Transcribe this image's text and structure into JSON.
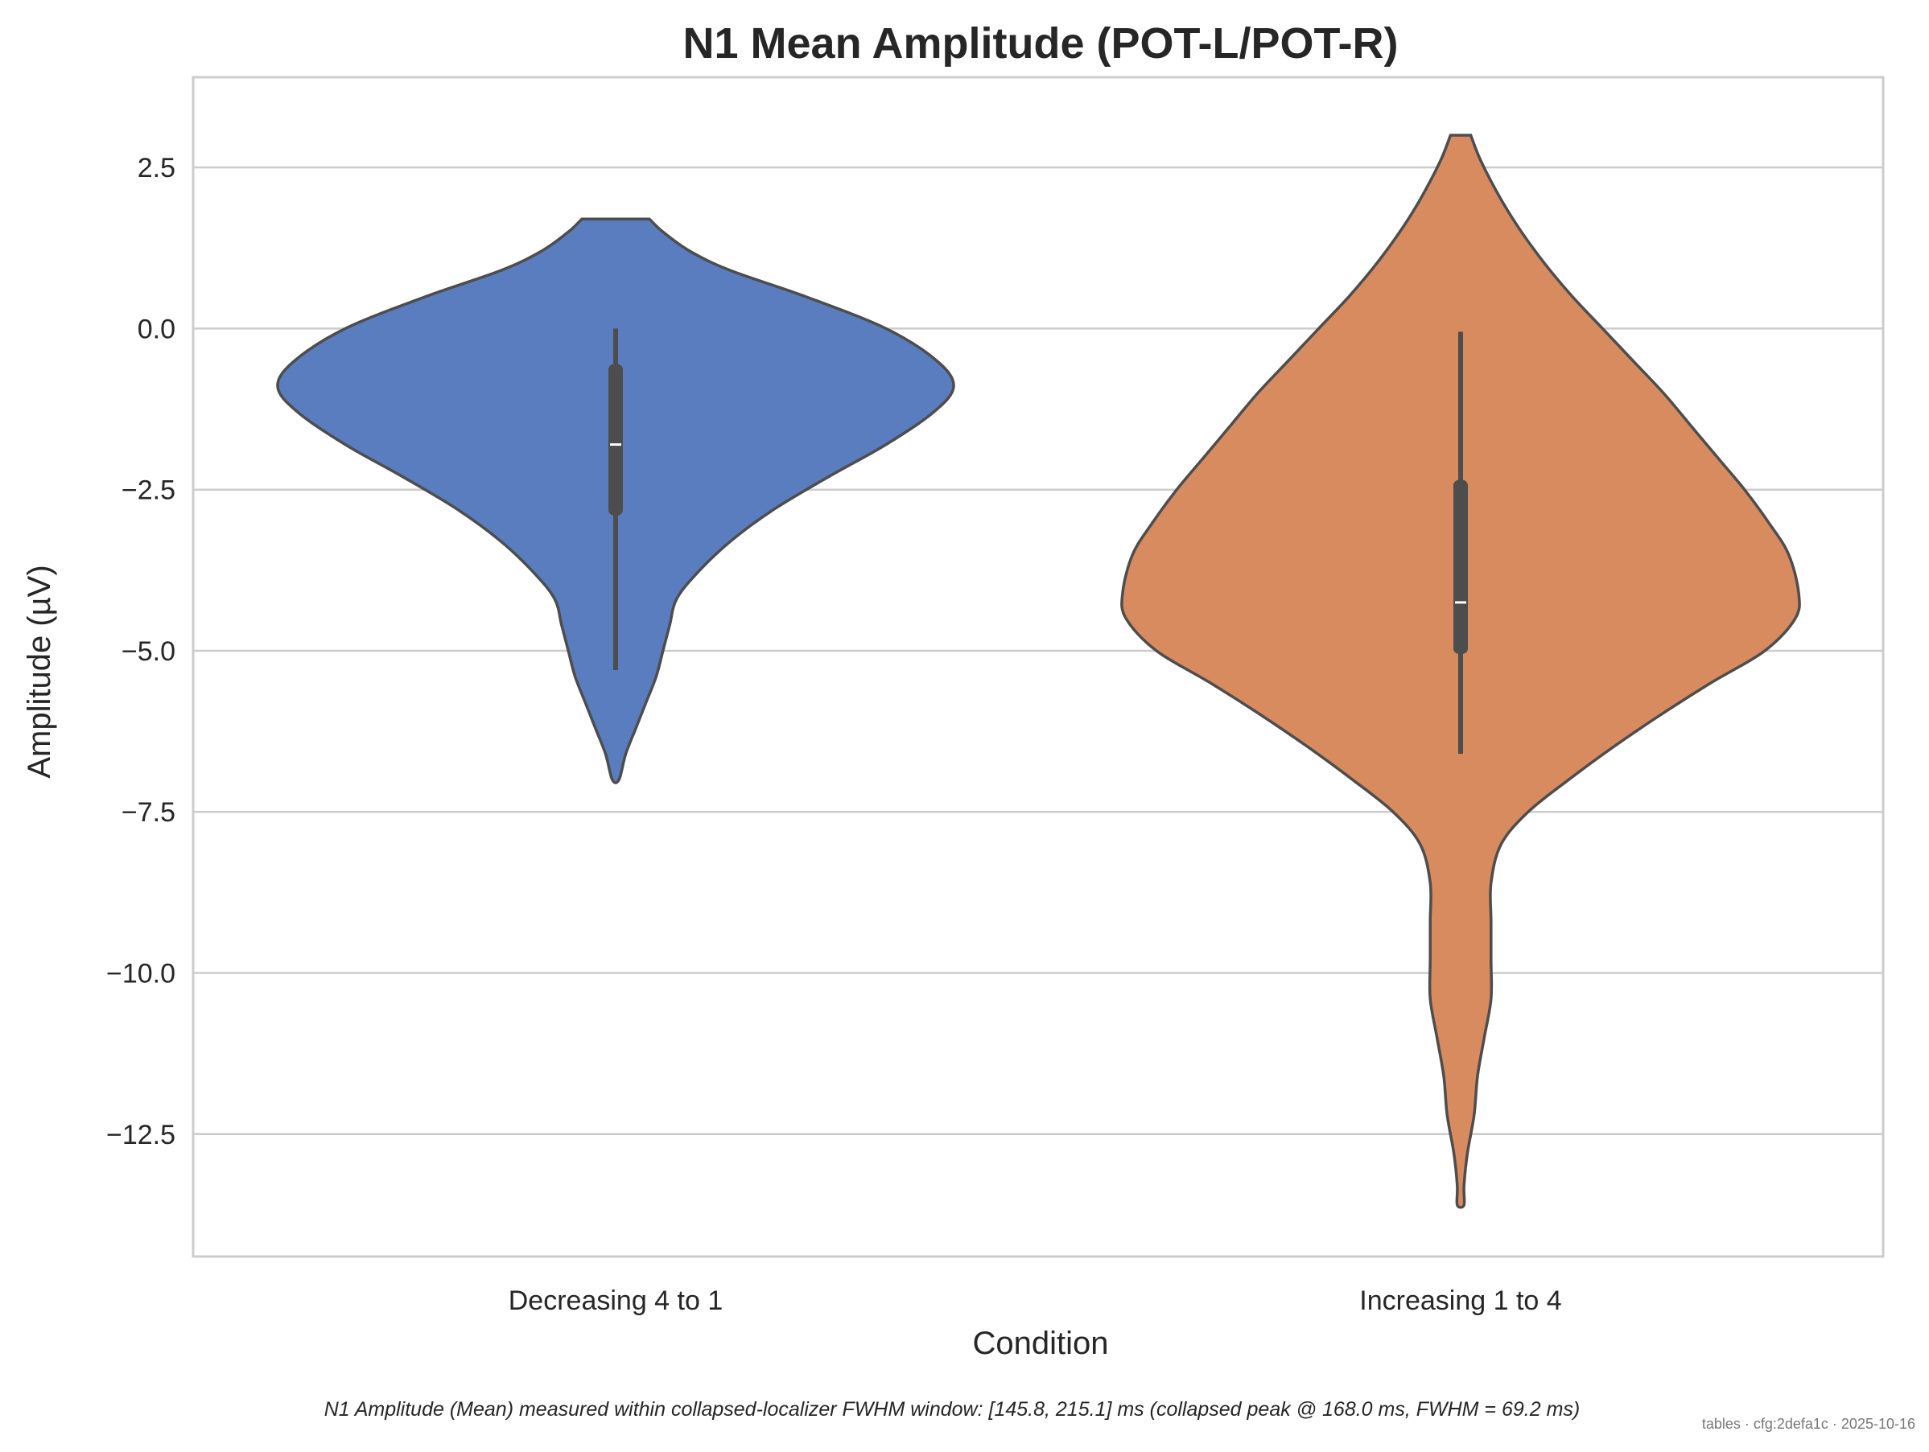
{
  "chart_data": {
    "type": "violin",
    "title": "N1 Mean Amplitude (POT-L/POT-R)",
    "xlabel": "Condition",
    "ylabel": "Amplitude (µV)",
    "ylim": [
      -14.4,
      3.9
    ],
    "yticks": [
      2.5,
      0.0,
      -2.5,
      -5.0,
      -7.5,
      -10.0,
      -12.5
    ],
    "ytick_labels": [
      "2.5",
      "0.0",
      "−2.5",
      "−5.0",
      "−7.5",
      "−10.0",
      "−12.5"
    ],
    "grid": true,
    "categories": [
      "Decreasing 4 to 1",
      "Increasing 1 to 4"
    ],
    "series": [
      {
        "category": "Decreasing 4 to 1",
        "color": "#5a7dbf",
        "range": [
          -7.0,
          1.7
        ],
        "whisker": [
          -5.3,
          0.0
        ],
        "q1": -2.9,
        "median": -1.8,
        "q3": -0.55,
        "density": [
          [
            1.7,
            0.1
          ],
          [
            1.5,
            0.14
          ],
          [
            1.2,
            0.22
          ],
          [
            0.9,
            0.34
          ],
          [
            0.5,
            0.56
          ],
          [
            0.0,
            0.8
          ],
          [
            -0.5,
            0.95
          ],
          [
            -0.9,
            1.0
          ],
          [
            -1.3,
            0.94
          ],
          [
            -1.8,
            0.8
          ],
          [
            -2.3,
            0.63
          ],
          [
            -2.8,
            0.47
          ],
          [
            -3.3,
            0.34
          ],
          [
            -3.8,
            0.24
          ],
          [
            -4.2,
            0.18
          ],
          [
            -4.6,
            0.16
          ],
          [
            -5.0,
            0.14
          ],
          [
            -5.4,
            0.12
          ],
          [
            -5.8,
            0.09
          ],
          [
            -6.2,
            0.06
          ],
          [
            -6.6,
            0.03
          ],
          [
            -7.0,
            0.01
          ]
        ]
      },
      {
        "category": "Increasing 1 to 4",
        "color": "#d88b5f",
        "range": [
          -13.6,
          3.0
        ],
        "whisker": [
          -6.6,
          -0.05
        ],
        "q1": -5.05,
        "median": -4.25,
        "q3": -2.35,
        "density": [
          [
            3.0,
            0.03
          ],
          [
            2.6,
            0.06
          ],
          [
            2.0,
            0.12
          ],
          [
            1.5,
            0.18
          ],
          [
            1.0,
            0.25
          ],
          [
            0.5,
            0.33
          ],
          [
            0.0,
            0.42
          ],
          [
            -0.5,
            0.51
          ],
          [
            -1.0,
            0.6
          ],
          [
            -1.5,
            0.68
          ],
          [
            -2.0,
            0.76
          ],
          [
            -2.5,
            0.84
          ],
          [
            -3.0,
            0.91
          ],
          [
            -3.5,
            0.97
          ],
          [
            -4.1,
            1.0
          ],
          [
            -4.5,
            0.99
          ],
          [
            -5.0,
            0.9
          ],
          [
            -5.5,
            0.74
          ],
          [
            -6.0,
            0.59
          ],
          [
            -6.5,
            0.45
          ],
          [
            -7.0,
            0.32
          ],
          [
            -7.5,
            0.2
          ],
          [
            -8.0,
            0.12
          ],
          [
            -8.6,
            0.09
          ],
          [
            -9.2,
            0.09
          ],
          [
            -9.8,
            0.09
          ],
          [
            -10.4,
            0.09
          ],
          [
            -11.0,
            0.07
          ],
          [
            -11.6,
            0.05
          ],
          [
            -12.2,
            0.04
          ],
          [
            -12.8,
            0.02
          ],
          [
            -13.3,
            0.01
          ],
          [
            -13.6,
            0.01
          ]
        ]
      }
    ]
  },
  "caption": "N1 Amplitude (Mean) measured within collapsed-localizer FWHM window: [145.8, 215.1] ms (collapsed peak @ 168.0 ms, FWHM = 69.2 ms)",
  "footer": "tables · cfg:2defa1c · 2025-10-16"
}
